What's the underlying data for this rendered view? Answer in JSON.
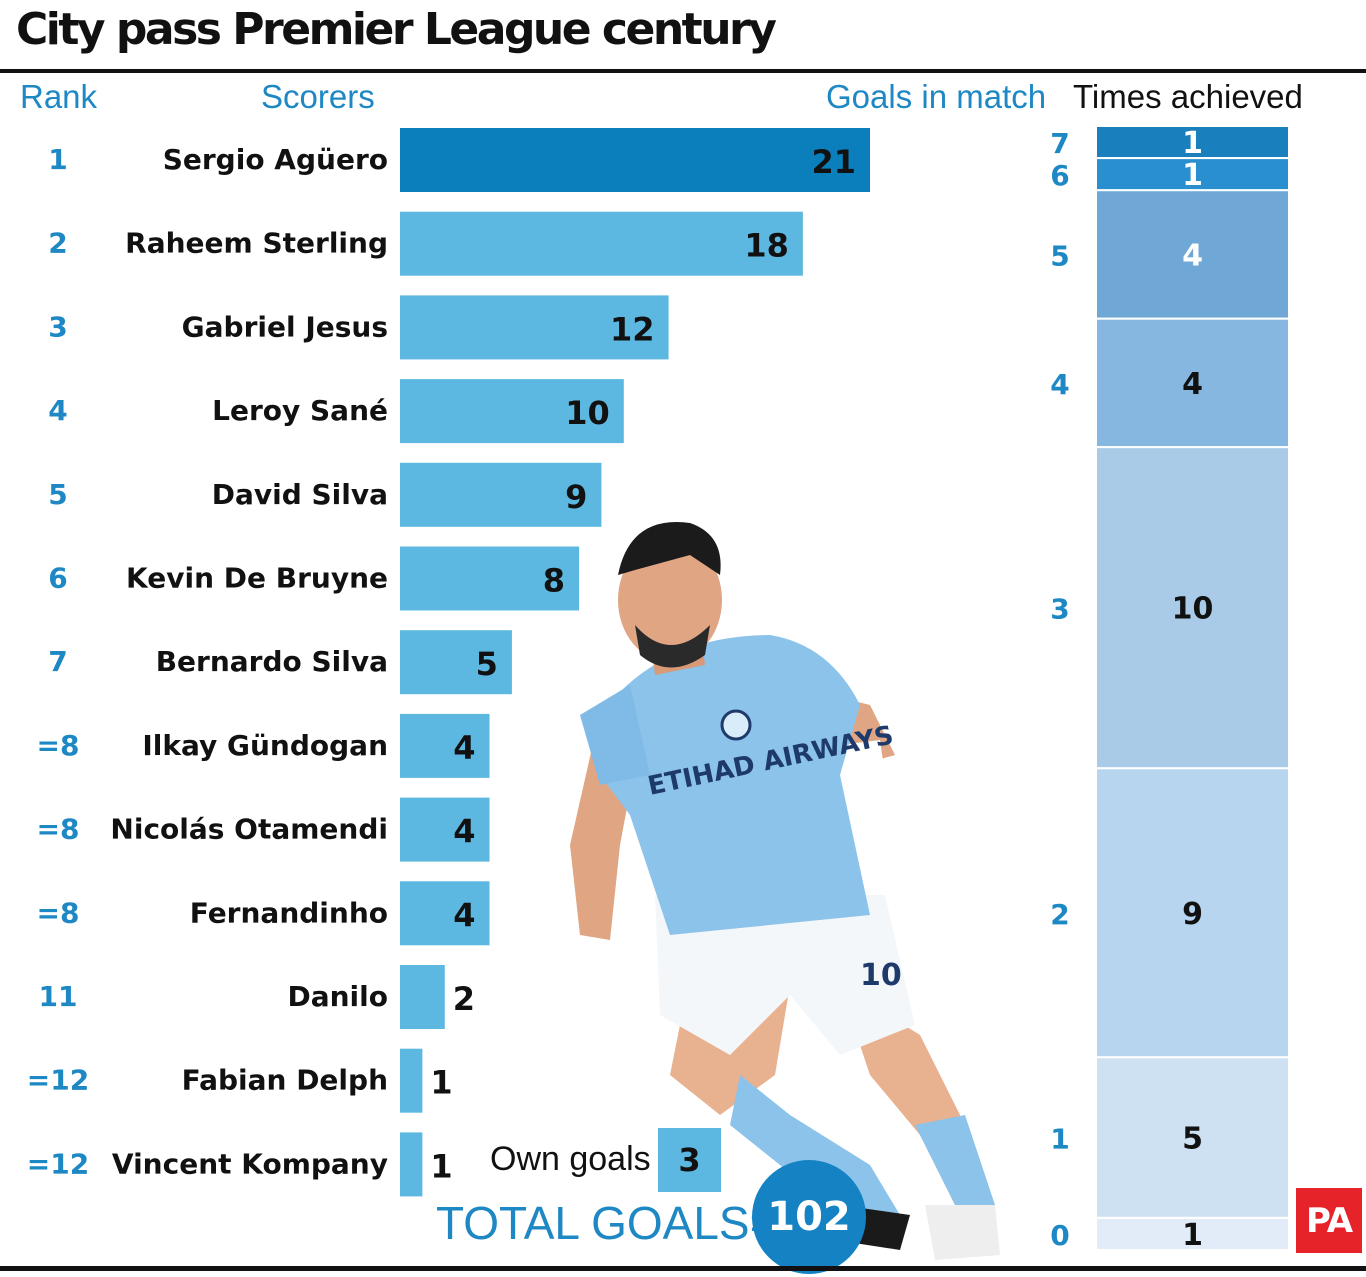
{
  "title": "City pass Premier League century",
  "headers": {
    "rank": "Rank",
    "scorers": "Scorers",
    "goals_in_match": "Goals in match",
    "times_achieved": "Times achieved"
  },
  "chart_data": [
    {
      "type": "bar",
      "orientation": "horizontal",
      "categories": [
        "Sergio Agüero",
        "Raheem Sterling",
        "Gabriel Jesus",
        "Leroy Sané",
        "David Silva",
        "Kevin De Bruyne",
        "Bernardo Silva",
        "Ilkay Gündogan",
        "Nicolás Otamendi",
        "Fernandinho",
        "Danilo",
        "Fabian Delph",
        "Vincent Kompany"
      ],
      "ranks": [
        "1",
        "2",
        "3",
        "4",
        "5",
        "6",
        "7",
        "=8",
        "=8",
        "=8",
        "11",
        "=12",
        "=12"
      ],
      "values": [
        21,
        18,
        12,
        10,
        9,
        8,
        5,
        4,
        4,
        4,
        2,
        1,
        1
      ],
      "highlight_index": 0,
      "colors": {
        "highlight": "#0a7fbc",
        "bar": "#5cb8e0"
      },
      "xlim": [
        0,
        21
      ],
      "title": "",
      "xlabel": "",
      "ylabel": ""
    },
    {
      "type": "bar",
      "orientation": "stacked",
      "categories": [
        "7",
        "6",
        "5",
        "4",
        "3",
        "2",
        "1",
        "0"
      ],
      "values": [
        1,
        1,
        4,
        4,
        10,
        9,
        5,
        1
      ],
      "colors": [
        "#1a7fbd",
        "#2a8fce",
        "#6fa8d6",
        "#86b7e0",
        "#a9cbe8",
        "#b7d5ee",
        "#cde1f3",
        "#e1ecf8"
      ],
      "label_colors": [
        "#ffffff",
        "#ffffff",
        "#ffffff",
        "#111111",
        "#111111",
        "#111111",
        "#111111",
        "#111111"
      ],
      "title": "",
      "xlabel": "",
      "ylabel": ""
    }
  ],
  "own_goals": {
    "label": "Own goals",
    "value": "3"
  },
  "total": {
    "label": "TOTAL GOALS=",
    "value": "102"
  },
  "photo": {
    "subject": "footballer-photo",
    "shirt_text": "ETIHAD AIRWAYS",
    "shirt_number": "10"
  },
  "logo": "PA"
}
